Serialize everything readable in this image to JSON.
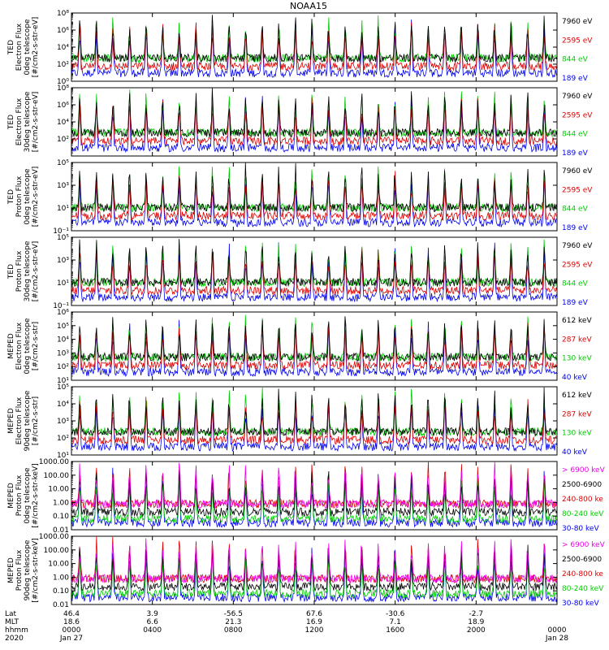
{
  "chart_data": {
    "type": "line",
    "title": "NOAA15",
    "x_range_hours": [
      0,
      24
    ],
    "x_ticks": [
      {
        "hour": 0,
        "lat": "46.4",
        "mlt": "18.6",
        "hhmm": "0000",
        "date": "Jan 27"
      },
      {
        "hour": 4,
        "lat": "3.9",
        "mlt": "6.6",
        "hhmm": "0400",
        "date": ""
      },
      {
        "hour": 8,
        "lat": "-56.5",
        "mlt": "21.3",
        "hhmm": "0800",
        "date": ""
      },
      {
        "hour": 12,
        "lat": "67.6",
        "mlt": "16.9",
        "hhmm": "1200",
        "date": ""
      },
      {
        "hour": 16,
        "lat": "-30.6",
        "mlt": "7.1",
        "hhmm": "1600",
        "date": ""
      },
      {
        "hour": 20,
        "lat": "-2.7",
        "mlt": "18.9",
        "hhmm": "2000",
        "date": ""
      },
      {
        "hour": 24,
        "lat": "",
        "mlt": "",
        "hhmm": "0000",
        "date": "Jan 28"
      }
    ],
    "row_labels": [
      "Lat",
      "MLT",
      "hhmm",
      "2020"
    ],
    "panels": [
      {
        "ylabel": [
          "TED",
          "Electron Flux",
          "0deg telescope",
          "[#/cm2-s-str-eV]"
        ],
        "scale": "log",
        "ylim": [
          0,
          8
        ],
        "ticks": [
          {
            "v": 0,
            "t": "10⁰"
          },
          {
            "v": 2,
            "t": "10²"
          },
          {
            "v": 4,
            "t": "10⁴"
          },
          {
            "v": 6,
            "t": "10⁶"
          },
          {
            "v": 8,
            "t": "10⁸"
          }
        ],
        "series": [
          {
            "name": "7960 eV",
            "color": "#000000"
          },
          {
            "name": "2595 eV",
            "color": "#dd0000"
          },
          {
            "name": "844 eV",
            "color": "#00cc00"
          },
          {
            "name": "189 eV",
            "color": "#0000ee"
          }
        ]
      },
      {
        "ylabel": [
          "TED",
          "Electron Flux",
          "30deg telescope",
          "[#/cm2-s-str-eV]"
        ],
        "scale": "log",
        "ylim": [
          0,
          8
        ],
        "ticks": [
          {
            "v": 2,
            "t": "10²"
          },
          {
            "v": 4,
            "t": "10⁴"
          },
          {
            "v": 6,
            "t": "10⁶"
          },
          {
            "v": 8,
            "t": "10⁸"
          }
        ],
        "series": [
          {
            "name": "7960 eV",
            "color": "#000000"
          },
          {
            "name": "2595 eV",
            "color": "#dd0000"
          },
          {
            "name": "844 eV",
            "color": "#00cc00"
          },
          {
            "name": "189 eV",
            "color": "#0000ee"
          }
        ]
      },
      {
        "ylabel": [
          "TED",
          "Proton Flux",
          "0deg telescope",
          "[#/cm2-s-str-eV]"
        ],
        "scale": "log",
        "ylim": [
          -1,
          5
        ],
        "ticks": [
          {
            "v": -1,
            "t": "10⁻¹"
          },
          {
            "v": 1,
            "t": "10¹"
          },
          {
            "v": 3,
            "t": "10³"
          },
          {
            "v": 5,
            "t": "10⁵"
          }
        ],
        "series": [
          {
            "name": "7960 eV",
            "color": "#000000"
          },
          {
            "name": "2595 eV",
            "color": "#dd0000"
          },
          {
            "name": "844 eV",
            "color": "#00cc00"
          },
          {
            "name": "189 eV",
            "color": "#0000ee"
          }
        ]
      },
      {
        "ylabel": [
          "TED",
          "Proton Flux",
          "30deg telescope",
          "[#/cm2-s-str-eV]"
        ],
        "scale": "log",
        "ylim": [
          -1,
          5
        ],
        "ticks": [
          {
            "v": -1,
            "t": "10⁻¹"
          },
          {
            "v": 1,
            "t": "10¹"
          },
          {
            "v": 3,
            "t": "10³"
          },
          {
            "v": 5,
            "t": "10⁵"
          }
        ],
        "series": [
          {
            "name": "7960 eV",
            "color": "#000000"
          },
          {
            "name": "2595 eV",
            "color": "#dd0000"
          },
          {
            "name": "844 eV",
            "color": "#00cc00"
          },
          {
            "name": "189 eV",
            "color": "#0000ee"
          }
        ]
      },
      {
        "ylabel": [
          "MEPED",
          "Electron Flux",
          "0deg telescope",
          "[#/cm2-s-str]"
        ],
        "scale": "log",
        "ylim": [
          1,
          6
        ],
        "ticks": [
          {
            "v": 1,
            "t": "10¹"
          },
          {
            "v": 2,
            "t": "10²"
          },
          {
            "v": 3,
            "t": "10³"
          },
          {
            "v": 4,
            "t": "10⁴"
          },
          {
            "v": 5,
            "t": "10⁵"
          },
          {
            "v": 6,
            "t": "10⁶"
          }
        ],
        "series": [
          {
            "name": "612 keV",
            "color": "#000000"
          },
          {
            "name": "287 keV",
            "color": "#dd0000"
          },
          {
            "name": "130 keV",
            "color": "#00cc00"
          },
          {
            "name": "40 keV",
            "color": "#0000ee"
          }
        ]
      },
      {
        "ylabel": [
          "MEPED",
          "Electron Flux",
          "90deg telescope",
          "[#/cm2-s-str]"
        ],
        "scale": "log",
        "ylim": [
          1,
          5
        ],
        "ticks": [
          {
            "v": 1,
            "t": "10¹"
          },
          {
            "v": 2,
            "t": "10²"
          },
          {
            "v": 3,
            "t": "10³"
          },
          {
            "v": 4,
            "t": "10⁴"
          },
          {
            "v": 5,
            "t": "10⁵"
          }
        ],
        "series": [
          {
            "name": "612 keV",
            "color": "#000000"
          },
          {
            "name": "287 keV",
            "color": "#dd0000"
          },
          {
            "name": "130 keV",
            "color": "#00cc00"
          },
          {
            "name": "40 keV",
            "color": "#0000ee"
          }
        ]
      },
      {
        "ylabel": [
          "MEPED",
          "Proton Flux",
          "0deg telescope",
          "[#/cm2-s-str-keV]"
        ],
        "scale": "log",
        "ylim": [
          -2,
          3
        ],
        "ticks": [
          {
            "v": -2,
            "t": "0.01"
          },
          {
            "v": -1,
            "t": "0.10"
          },
          {
            "v": 0,
            "t": "1.00"
          },
          {
            "v": 1,
            "t": "10.00"
          },
          {
            "v": 2,
            "t": "100.00"
          },
          {
            "v": 3,
            "t": "1000.00"
          }
        ],
        "series": [
          {
            "name": "> 6900 keV",
            "color": "#ee00ee"
          },
          {
            "name": "2500-6900",
            "color": "#000000"
          },
          {
            "name": "240-800 ke",
            "color": "#dd0000"
          },
          {
            "name": "80-240 keV",
            "color": "#00cc00"
          },
          {
            "name": "30-80 keV",
            "color": "#0000ee"
          }
        ]
      },
      {
        "ylabel": [
          "MEPED",
          "Proton Flux",
          "90deg telescope",
          "[#/cm2-s-str-keV]"
        ],
        "scale": "log",
        "ylim": [
          -2,
          3
        ],
        "ticks": [
          {
            "v": -2,
            "t": "0.01"
          },
          {
            "v": -1,
            "t": "0.10"
          },
          {
            "v": 0,
            "t": "1.00"
          },
          {
            "v": 1,
            "t": "10.00"
          },
          {
            "v": 2,
            "t": "100.00"
          },
          {
            "v": 3,
            "t": "1000.00"
          }
        ],
        "series": [
          {
            "name": "> 6900 keV",
            "color": "#ee00ee"
          },
          {
            "name": "2500-6900",
            "color": "#000000"
          },
          {
            "name": "240-800 ke",
            "color": "#dd0000"
          },
          {
            "name": "80-240 keV",
            "color": "#00cc00"
          },
          {
            "name": "30-80 keV",
            "color": "#0000ee"
          }
        ]
      }
    ]
  }
}
